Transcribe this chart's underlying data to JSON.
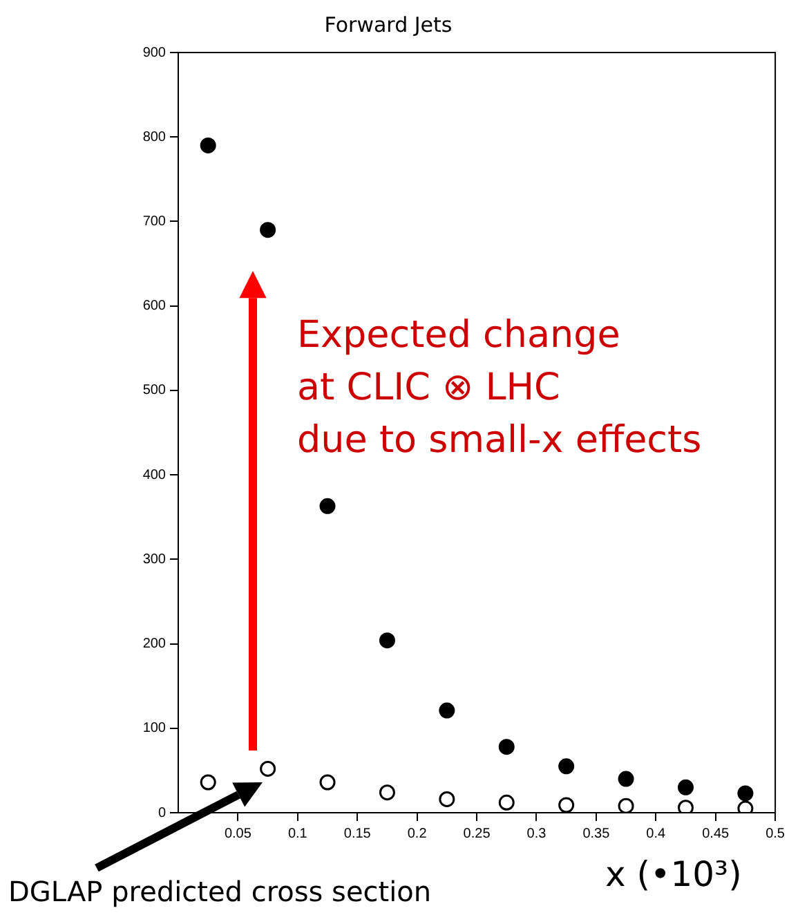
{
  "chart_data": {
    "type": "scatter",
    "title": "Forward Jets",
    "xlabel": "x (•10³)",
    "annotations": [
      "Expected change\nat CLIC ⊗ LHC\ndue to small-x effects",
      "DGLAP predicted cross section"
    ],
    "x": [
      0.025,
      0.075,
      0.125,
      0.175,
      0.225,
      0.275,
      0.325,
      0.375,
      0.425,
      0.475
    ],
    "series": [
      {
        "color": "#000000",
        "values": [
          790,
          690,
          363,
          204,
          121,
          78,
          55,
          40,
          30,
          23
        ]
      },
      {
        "color": "#000000",
        "values": [
          36,
          52,
          36,
          24,
          16,
          12,
          9,
          8,
          6,
          5
        ]
      }
    ],
    "xlim": [
      0,
      0.5
    ],
    "xticks": [
      0.05,
      0.1,
      0.15,
      0.2,
      0.25,
      0.3,
      0.35,
      0.4,
      0.45,
      0.5
    ],
    "ylim": [
      0,
      900
    ],
    "yticks": [
      0,
      100,
      200,
      300,
      400,
      500,
      600,
      700,
      800,
      900
    ],
    "grid": false,
    "legend": false,
    "marker": "circle"
  }
}
